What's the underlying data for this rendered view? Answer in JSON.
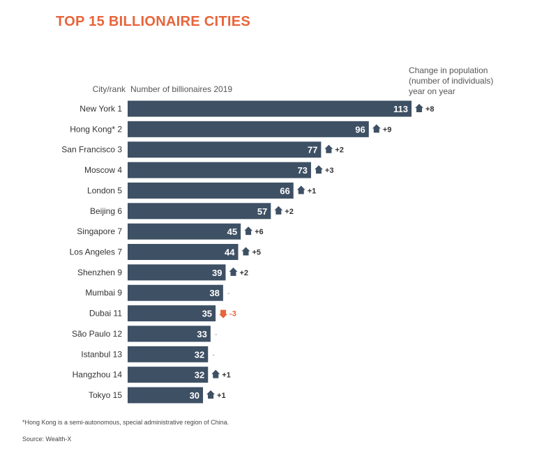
{
  "chart_data": {
    "type": "bar",
    "orientation": "horizontal",
    "title": "TOP 15 BILLIONAIRE CITIES",
    "category_header": "City/rank",
    "value_header": "Number of billionaires 2019",
    "change_header": "Change in population\n(number of individuals)\nyear on year",
    "categories": [
      "New York 1",
      "Hong Kong* 2",
      "San Francisco 3",
      "Moscow 4",
      "London 5",
      "Beijing 6",
      "Singapore 7",
      "Los Angeles 7",
      "Shenzhen 9",
      "Mumbai 9",
      "Dubai 11",
      "São Paulo 12",
      "Istanbul 13",
      "Hangzhou 14",
      "Tokyo 15"
    ],
    "values": [
      113,
      96,
      77,
      73,
      66,
      57,
      45,
      44,
      39,
      38,
      35,
      33,
      32,
      32,
      30
    ],
    "changes": [
      "+8",
      "+9",
      "+2",
      "+3",
      "+1",
      "+2",
      "+6",
      "+5",
      "+2",
      "-",
      "-3",
      "-",
      "-",
      "+1",
      "+1"
    ],
    "change_direction": [
      "up",
      "up",
      "up",
      "up",
      "up",
      "up",
      "up",
      "up",
      "up",
      "none",
      "down",
      "none",
      "none",
      "up",
      "up"
    ],
    "xlim": [
      0,
      113
    ],
    "footnote": "*Hong Kong is a semi-autonomous, special administrative region of China.",
    "source": "Source: Wealth-X"
  },
  "colors": {
    "bar": "#3e5064",
    "title": "#e8643a",
    "up": "#3e5064",
    "down": "#e8643a",
    "text": "#333333"
  }
}
